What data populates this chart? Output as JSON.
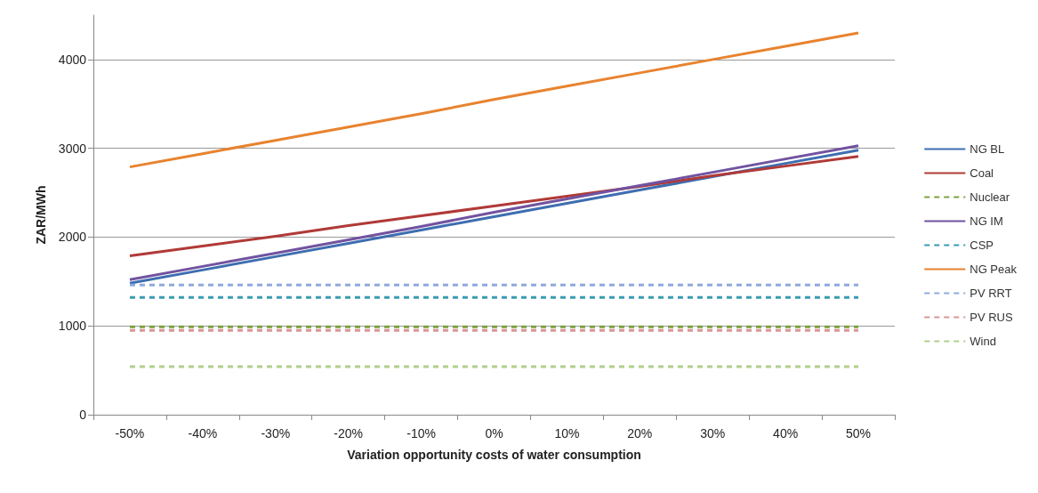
{
  "chart_data": {
    "type": "line",
    "xlabel": "Variation opportunity costs of water consumption",
    "ylabel": "ZAR/MWh",
    "categories": [
      "-50%",
      "-40%",
      "-30%",
      "-20%",
      "-10%",
      "0%",
      "10%",
      "20%",
      "30%",
      "40%",
      "50%"
    ],
    "ylim": [
      0,
      4500
    ],
    "yticks": [
      0,
      1000,
      2000,
      3000,
      4000
    ],
    "grid": "y",
    "legend": "right",
    "marker": "none",
    "series": [
      {
        "name": "NG BL",
        "color": "#3e6eb0",
        "line_style": "solid",
        "values": [
          1480,
          1630,
          1780,
          1930,
          2080,
          2230,
          2380,
          2530,
          2680,
          2830,
          2980
        ]
      },
      {
        "name": "Coal",
        "color": "#b03a37",
        "line_style": "solid",
        "values": [
          1790,
          1900,
          2010,
          2130,
          2240,
          2350,
          2460,
          2570,
          2690,
          2800,
          2910
        ]
      },
      {
        "name": "Nuclear",
        "color": "#7ba23f",
        "line_style": "dashed",
        "values": [
          990,
          990,
          990,
          990,
          990,
          990,
          990,
          990,
          990,
          990,
          990
        ]
      },
      {
        "name": "NG IM",
        "color": "#7153a0",
        "line_style": "solid",
        "values": [
          1520,
          1670,
          1820,
          1970,
          2120,
          2280,
          2430,
          2580,
          2730,
          2880,
          3030
        ]
      },
      {
        "name": "CSP",
        "color": "#3a9bb2",
        "line_style": "dashed",
        "values": [
          1320,
          1320,
          1320,
          1320,
          1320,
          1320,
          1320,
          1320,
          1320,
          1320,
          1320
        ]
      },
      {
        "name": "NG Peak",
        "color": "#e8832f",
        "line_style": "solid",
        "values": [
          2790,
          2940,
          3090,
          3240,
          3390,
          3550,
          3700,
          3850,
          4000,
          4150,
          4300
        ]
      },
      {
        "name": "PV RRT",
        "color": "#8ea9db",
        "line_style": "dashed",
        "values": [
          1460,
          1460,
          1460,
          1460,
          1460,
          1460,
          1460,
          1460,
          1460,
          1460,
          1460
        ]
      },
      {
        "name": "PV RUS",
        "color": "#d99594",
        "line_style": "dashed",
        "values": [
          950,
          950,
          950,
          950,
          950,
          950,
          950,
          950,
          950,
          950,
          950
        ]
      },
      {
        "name": "Wind",
        "color": "#b1cf8c",
        "line_style": "dashed",
        "values": [
          540,
          540,
          540,
          540,
          540,
          540,
          540,
          540,
          540,
          540,
          540
        ]
      }
    ]
  }
}
